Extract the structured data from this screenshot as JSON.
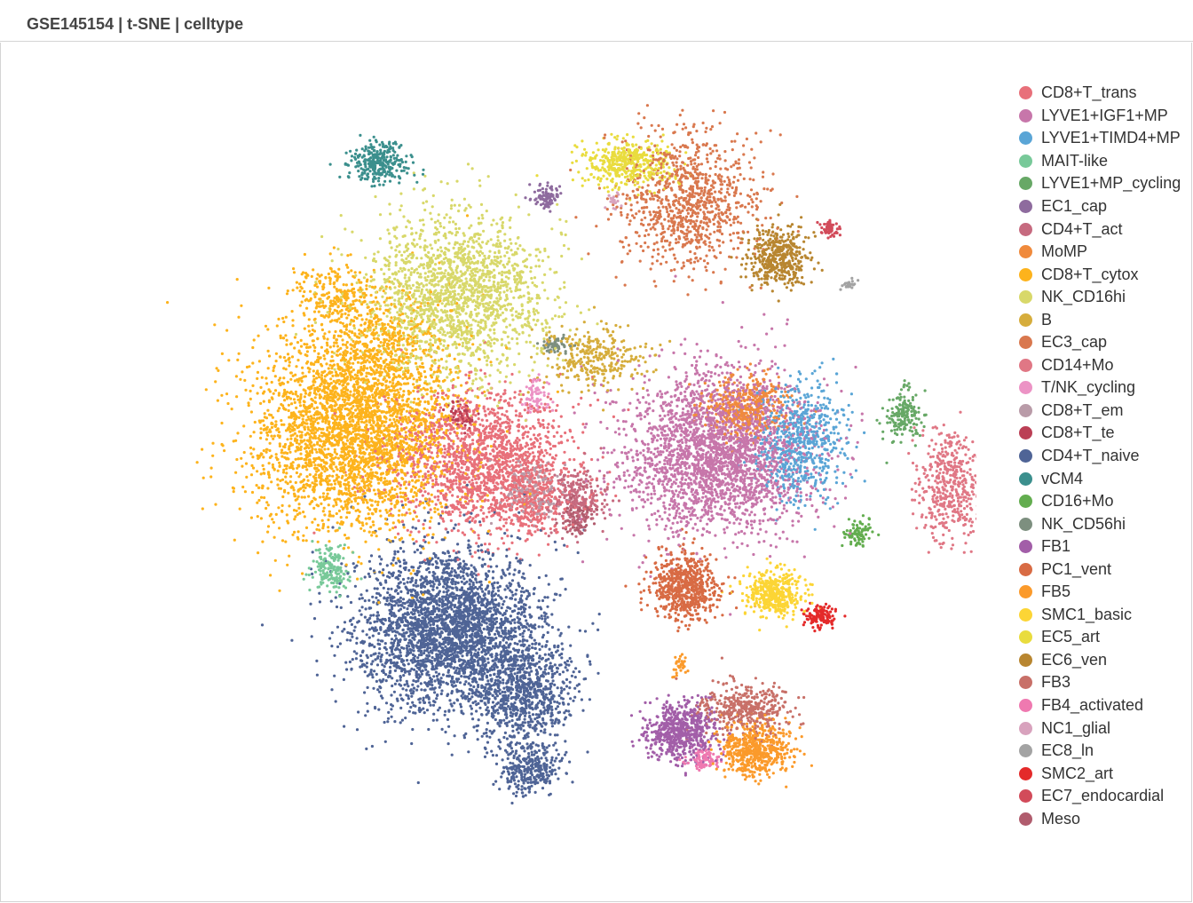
{
  "header": {
    "title": "GSE145154 | t-SNE | celltype"
  },
  "chart_data": {
    "type": "scatter",
    "title": "GSE145154 | t-SNE | celltype",
    "xlabel": "",
    "ylabel": "",
    "xlim": [
      -60,
      60
    ],
    "ylim": [
      -60,
      60
    ],
    "axes_visible": false,
    "grid": false,
    "legend_position": "right",
    "series": [
      {
        "name": "CD8+T_trans",
        "color": "#e8707a",
        "clusters": [
          [
            -11,
            0,
            8,
            6,
            1700
          ],
          [
            -6,
            -4,
            3,
            3,
            250
          ]
        ]
      },
      {
        "name": "LYVE1+IGF1+MP",
        "color": "#c776aa",
        "clusters": [
          [
            14,
            1,
            8,
            7,
            2600
          ]
        ]
      },
      {
        "name": "LYVE1+TIMD4+MP",
        "color": "#5aa5d6",
        "clusters": [
          [
            23,
            2,
            4,
            5,
            650
          ]
        ]
      },
      {
        "name": "MAIT-like",
        "color": "#78c999",
        "clusters": [
          [
            -27.5,
            -11.5,
            1.5,
            2,
            170
          ]
        ]
      },
      {
        "name": "LYVE1+MP_cycling",
        "color": "#67a866",
        "clusters": [
          [
            34,
            5,
            1.5,
            2.2,
            170
          ]
        ]
      },
      {
        "name": "EC1_cap",
        "color": "#8e6b9e",
        "clusters": [
          [
            -4.5,
            28.5,
            1.2,
            1.1,
            90
          ]
        ]
      },
      {
        "name": "CD4+T_act",
        "color": "#c66a7f",
        "clusters": [
          [
            -1,
            -4,
            2.5,
            2.8,
            250
          ]
        ]
      },
      {
        "name": "MoMP",
        "color": "#f08a3c",
        "clusters": [
          [
            17,
            6,
            3.5,
            2.6,
            420
          ]
        ]
      },
      {
        "name": "CD8+T_cytox",
        "color": "#fdb31c",
        "clusters": [
          [
            -25,
            3,
            9,
            8.5,
            3000
          ],
          [
            -23,
            12,
            7,
            6,
            700
          ],
          [
            -27,
            18,
            3.5,
            2.5,
            200
          ]
        ]
      },
      {
        "name": "NK_CD16hi",
        "color": "#d8d86a",
        "clusters": [
          [
            -14,
            18,
            8,
            7,
            1800
          ]
        ]
      },
      {
        "name": "B",
        "color": "#d6ad3c",
        "clusters": [
          [
            1,
            11,
            4.5,
            2.6,
            320
          ]
        ]
      },
      {
        "name": "EC3_cap",
        "color": "#d9784e",
        "clusters": [
          [
            11,
            28,
            6,
            6,
            950
          ]
        ]
      },
      {
        "name": "CD14+Mo",
        "color": "#e07785",
        "clusters": [
          [
            39,
            -2.5,
            3,
            4.5,
            450
          ]
        ]
      },
      {
        "name": "T/NK_cycling",
        "color": "#ec93c5",
        "clusters": [
          [
            -5.5,
            7,
            1.2,
            1.5,
            70
          ]
        ]
      },
      {
        "name": "CD8+T_em",
        "color": "#b99ba8",
        "clusters": [
          [
            -6,
            -3,
            2.5,
            2.5,
            160
          ]
        ]
      },
      {
        "name": "CD8+T_te",
        "color": "#bb3f55",
        "clusters": [
          [
            -13.5,
            5,
            1.2,
            1,
            60
          ]
        ]
      },
      {
        "name": "CD4+T_naive",
        "color": "#4f6496",
        "clusters": [
          [
            -15,
            -18,
            8,
            7,
            3000
          ],
          [
            -7,
            -25,
            4.5,
            4.5,
            800
          ],
          [
            -6,
            -33,
            2.5,
            2,
            300
          ]
        ]
      },
      {
        "name": "vCM4",
        "color": "#3b8f8d",
        "clusters": [
          [
            -22.5,
            32,
            2.6,
            1.7,
            300
          ]
        ]
      },
      {
        "name": "CD16+Mo",
        "color": "#63ad4f",
        "clusters": [
          [
            29,
            -7.5,
            1.2,
            1.2,
            90
          ]
        ]
      },
      {
        "name": "NK_CD56hi",
        "color": "#7d8f7f",
        "clusters": [
          [
            -3.5,
            12.5,
            1.2,
            0.8,
            60
          ]
        ]
      },
      {
        "name": "FB1",
        "color": "#a25ea8",
        "clusters": [
          [
            10,
            -29,
            3,
            2.5,
            600
          ]
        ]
      },
      {
        "name": "PC1_vent",
        "color": "#d86b44",
        "clusters": [
          [
            10.5,
            -13.5,
            3,
            3,
            650
          ]
        ]
      },
      {
        "name": "FB5",
        "color": "#fb9a2b",
        "clusters": [
          [
            18,
            -31,
            3,
            2.2,
            550
          ],
          [
            10,
            -22,
            0.6,
            1,
            30
          ]
        ]
      },
      {
        "name": "SMC1_basic",
        "color": "#fcd535",
        "clusters": [
          [
            20,
            -14,
            2.5,
            2,
            420
          ]
        ]
      },
      {
        "name": "EC5_art",
        "color": "#e9dc3e",
        "clusters": [
          [
            4,
            32,
            4,
            2,
            420
          ]
        ]
      },
      {
        "name": "EC6_ven",
        "color": "#b88630",
        "clusters": [
          [
            20.5,
            22,
            2.6,
            2.6,
            420
          ]
        ]
      },
      {
        "name": "FB3",
        "color": "#c87068",
        "clusters": [
          [
            17,
            -26.5,
            4,
            2.2,
            400
          ]
        ]
      },
      {
        "name": "FB4_activated",
        "color": "#ef79b0",
        "clusters": [
          [
            12.5,
            -32,
            1.3,
            1.1,
            90
          ]
        ]
      },
      {
        "name": "NC1_glial",
        "color": "#d8a2bd",
        "clusters": [
          [
            3,
            28,
            0.8,
            0.8,
            20
          ]
        ]
      },
      {
        "name": "EC8_ln",
        "color": "#a3a3a3",
        "clusters": [
          [
            28,
            19,
            0.6,
            0.5,
            25
          ]
        ]
      },
      {
        "name": "SMC2_art",
        "color": "#e42a2a",
        "clusters": [
          [
            25,
            -16.5,
            1.4,
            1,
            130
          ]
        ]
      },
      {
        "name": "EC7_endocardial",
        "color": "#d24b5a",
        "clusters": [
          [
            26,
            25,
            0.8,
            0.8,
            60
          ]
        ]
      },
      {
        "name": "Meso",
        "color": "#b05c6d",
        "clusters": [
          [
            -1,
            -6,
            1.5,
            1.5,
            90
          ]
        ]
      }
    ]
  }
}
